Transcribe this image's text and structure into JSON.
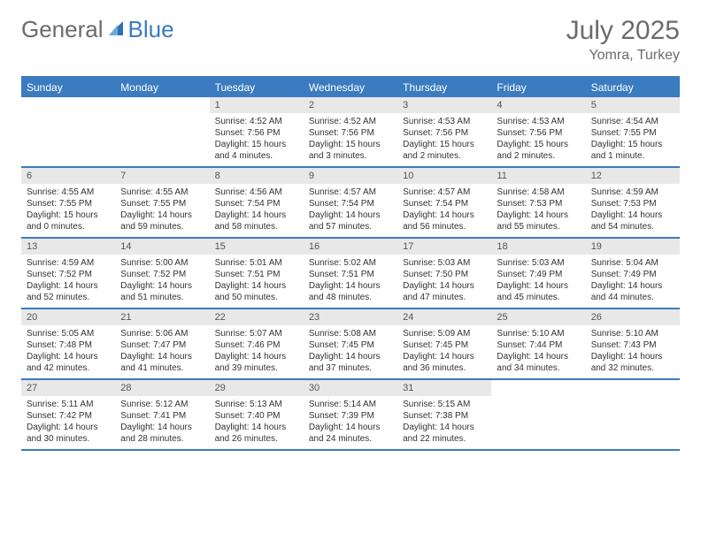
{
  "brand": {
    "word1": "General",
    "word2": "Blue"
  },
  "title": {
    "month": "July 2025",
    "location": "Yomra, Turkey"
  },
  "colors": {
    "accent": "#3b7bbf",
    "headerText": "#ffffff",
    "bodyText": "#333333",
    "muted": "#6b6b6b",
    "daynumBg": "#e8e8e8",
    "background": "#ffffff"
  },
  "fonts": {
    "title_size": 30,
    "location_size": 16,
    "dayheader_size": 12,
    "cell_size": 10
  },
  "days": [
    "Sunday",
    "Monday",
    "Tuesday",
    "Wednesday",
    "Thursday",
    "Friday",
    "Saturday"
  ],
  "weeks": [
    [
      null,
      null,
      {
        "n": "1",
        "sr": "Sunrise: 4:52 AM",
        "ss": "Sunset: 7:56 PM",
        "d1": "Daylight: 15 hours",
        "d2": "and 4 minutes."
      },
      {
        "n": "2",
        "sr": "Sunrise: 4:52 AM",
        "ss": "Sunset: 7:56 PM",
        "d1": "Daylight: 15 hours",
        "d2": "and 3 minutes."
      },
      {
        "n": "3",
        "sr": "Sunrise: 4:53 AM",
        "ss": "Sunset: 7:56 PM",
        "d1": "Daylight: 15 hours",
        "d2": "and 2 minutes."
      },
      {
        "n": "4",
        "sr": "Sunrise: 4:53 AM",
        "ss": "Sunset: 7:56 PM",
        "d1": "Daylight: 15 hours",
        "d2": "and 2 minutes."
      },
      {
        "n": "5",
        "sr": "Sunrise: 4:54 AM",
        "ss": "Sunset: 7:55 PM",
        "d1": "Daylight: 15 hours",
        "d2": "and 1 minute."
      }
    ],
    [
      {
        "n": "6",
        "sr": "Sunrise: 4:55 AM",
        "ss": "Sunset: 7:55 PM",
        "d1": "Daylight: 15 hours",
        "d2": "and 0 minutes."
      },
      {
        "n": "7",
        "sr": "Sunrise: 4:55 AM",
        "ss": "Sunset: 7:55 PM",
        "d1": "Daylight: 14 hours",
        "d2": "and 59 minutes."
      },
      {
        "n": "8",
        "sr": "Sunrise: 4:56 AM",
        "ss": "Sunset: 7:54 PM",
        "d1": "Daylight: 14 hours",
        "d2": "and 58 minutes."
      },
      {
        "n": "9",
        "sr": "Sunrise: 4:57 AM",
        "ss": "Sunset: 7:54 PM",
        "d1": "Daylight: 14 hours",
        "d2": "and 57 minutes."
      },
      {
        "n": "10",
        "sr": "Sunrise: 4:57 AM",
        "ss": "Sunset: 7:54 PM",
        "d1": "Daylight: 14 hours",
        "d2": "and 56 minutes."
      },
      {
        "n": "11",
        "sr": "Sunrise: 4:58 AM",
        "ss": "Sunset: 7:53 PM",
        "d1": "Daylight: 14 hours",
        "d2": "and 55 minutes."
      },
      {
        "n": "12",
        "sr": "Sunrise: 4:59 AM",
        "ss": "Sunset: 7:53 PM",
        "d1": "Daylight: 14 hours",
        "d2": "and 54 minutes."
      }
    ],
    [
      {
        "n": "13",
        "sr": "Sunrise: 4:59 AM",
        "ss": "Sunset: 7:52 PM",
        "d1": "Daylight: 14 hours",
        "d2": "and 52 minutes."
      },
      {
        "n": "14",
        "sr": "Sunrise: 5:00 AM",
        "ss": "Sunset: 7:52 PM",
        "d1": "Daylight: 14 hours",
        "d2": "and 51 minutes."
      },
      {
        "n": "15",
        "sr": "Sunrise: 5:01 AM",
        "ss": "Sunset: 7:51 PM",
        "d1": "Daylight: 14 hours",
        "d2": "and 50 minutes."
      },
      {
        "n": "16",
        "sr": "Sunrise: 5:02 AM",
        "ss": "Sunset: 7:51 PM",
        "d1": "Daylight: 14 hours",
        "d2": "and 48 minutes."
      },
      {
        "n": "17",
        "sr": "Sunrise: 5:03 AM",
        "ss": "Sunset: 7:50 PM",
        "d1": "Daylight: 14 hours",
        "d2": "and 47 minutes."
      },
      {
        "n": "18",
        "sr": "Sunrise: 5:03 AM",
        "ss": "Sunset: 7:49 PM",
        "d1": "Daylight: 14 hours",
        "d2": "and 45 minutes."
      },
      {
        "n": "19",
        "sr": "Sunrise: 5:04 AM",
        "ss": "Sunset: 7:49 PM",
        "d1": "Daylight: 14 hours",
        "d2": "and 44 minutes."
      }
    ],
    [
      {
        "n": "20",
        "sr": "Sunrise: 5:05 AM",
        "ss": "Sunset: 7:48 PM",
        "d1": "Daylight: 14 hours",
        "d2": "and 42 minutes."
      },
      {
        "n": "21",
        "sr": "Sunrise: 5:06 AM",
        "ss": "Sunset: 7:47 PM",
        "d1": "Daylight: 14 hours",
        "d2": "and 41 minutes."
      },
      {
        "n": "22",
        "sr": "Sunrise: 5:07 AM",
        "ss": "Sunset: 7:46 PM",
        "d1": "Daylight: 14 hours",
        "d2": "and 39 minutes."
      },
      {
        "n": "23",
        "sr": "Sunrise: 5:08 AM",
        "ss": "Sunset: 7:45 PM",
        "d1": "Daylight: 14 hours",
        "d2": "and 37 minutes."
      },
      {
        "n": "24",
        "sr": "Sunrise: 5:09 AM",
        "ss": "Sunset: 7:45 PM",
        "d1": "Daylight: 14 hours",
        "d2": "and 36 minutes."
      },
      {
        "n": "25",
        "sr": "Sunrise: 5:10 AM",
        "ss": "Sunset: 7:44 PM",
        "d1": "Daylight: 14 hours",
        "d2": "and 34 minutes."
      },
      {
        "n": "26",
        "sr": "Sunrise: 5:10 AM",
        "ss": "Sunset: 7:43 PM",
        "d1": "Daylight: 14 hours",
        "d2": "and 32 minutes."
      }
    ],
    [
      {
        "n": "27",
        "sr": "Sunrise: 5:11 AM",
        "ss": "Sunset: 7:42 PM",
        "d1": "Daylight: 14 hours",
        "d2": "and 30 minutes."
      },
      {
        "n": "28",
        "sr": "Sunrise: 5:12 AM",
        "ss": "Sunset: 7:41 PM",
        "d1": "Daylight: 14 hours",
        "d2": "and 28 minutes."
      },
      {
        "n": "29",
        "sr": "Sunrise: 5:13 AM",
        "ss": "Sunset: 7:40 PM",
        "d1": "Daylight: 14 hours",
        "d2": "and 26 minutes."
      },
      {
        "n": "30",
        "sr": "Sunrise: 5:14 AM",
        "ss": "Sunset: 7:39 PM",
        "d1": "Daylight: 14 hours",
        "d2": "and 24 minutes."
      },
      {
        "n": "31",
        "sr": "Sunrise: 5:15 AM",
        "ss": "Sunset: 7:38 PM",
        "d1": "Daylight: 14 hours",
        "d2": "and 22 minutes."
      },
      null,
      null
    ]
  ]
}
